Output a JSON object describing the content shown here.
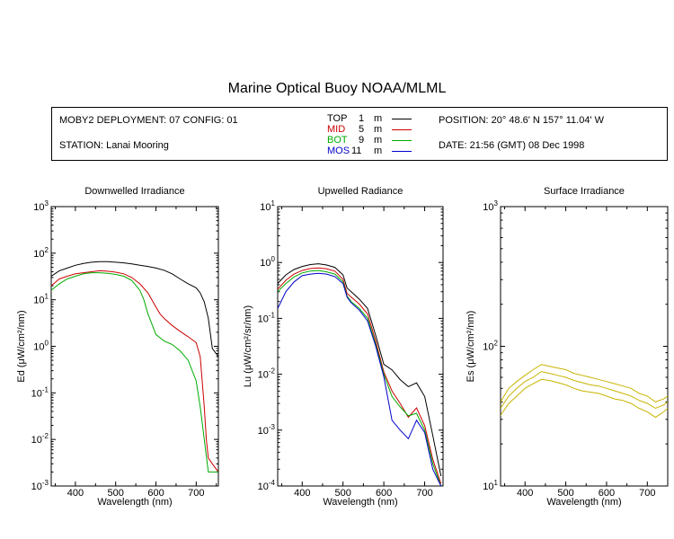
{
  "title": "Marine Optical Buoy NOAA/MLML",
  "header": {
    "deployment": "MOBY2 DEPLOYMENT: 07 CONFIG: 01",
    "station": "STATION: Lanai Mooring",
    "position": "POSITION: 20° 48.6' N   157° 11.04' W",
    "date": "DATE: 21:56 (GMT) 08 Dec 1998"
  },
  "depth_legend": [
    {
      "name": "TOP",
      "depth": "1",
      "unit": "m",
      "color": "#000000"
    },
    {
      "name": "MID",
      "depth": "5",
      "unit": "m",
      "color": "#cc0000"
    },
    {
      "name": "BOT",
      "depth": "9",
      "unit": "m",
      "color": "#00aa00"
    },
    {
      "name": "MOS",
      "depth": "11",
      "unit": "m",
      "color": "#0000cc"
    }
  ],
  "chart_data": [
    {
      "type": "line",
      "title": "Downwelled Irradiance",
      "xlabel": "Wavelength (nm)",
      "ylabel": "Ed  (μW/cm²/nm)",
      "xlim": [
        340,
        755
      ],
      "ylim": [
        0.001,
        1000
      ],
      "log_y": true,
      "x_ticks": [
        400,
        500,
        600,
        700
      ],
      "y_tick_labels": [
        "10-3",
        "10-2",
        "10-1",
        "100",
        "101",
        "102",
        "103"
      ],
      "series": [
        {
          "name": "TOP",
          "color": "#000000",
          "x": [
            340,
            360,
            380,
            400,
            420,
            440,
            460,
            480,
            500,
            520,
            540,
            560,
            580,
            600,
            620,
            640,
            660,
            680,
            700,
            710,
            720,
            730,
            740,
            755
          ],
          "y": [
            32,
            42,
            48,
            55,
            60,
            64,
            66,
            66,
            64,
            62,
            59,
            55,
            52,
            48,
            43,
            36,
            28,
            22,
            18,
            14,
            9,
            4,
            0.9,
            0.6
          ]
        },
        {
          "name": "MID",
          "color": "#cc0000",
          "x": [
            340,
            360,
            380,
            400,
            420,
            440,
            460,
            480,
            500,
            520,
            540,
            560,
            580,
            590,
            600,
            610,
            620,
            640,
            660,
            680,
            700,
            710,
            720,
            725,
            730,
            740,
            755
          ],
          "y": [
            20,
            28,
            32,
            36,
            38,
            40,
            42,
            41,
            39,
            36,
            30,
            22,
            14,
            10,
            7,
            5,
            4,
            2.8,
            2.1,
            1.6,
            1.2,
            0.6,
            0.05,
            0.01,
            0.004,
            0.003,
            0.002
          ]
        },
        {
          "name": "BOT",
          "color": "#00aa00",
          "x": [
            340,
            360,
            380,
            400,
            420,
            440,
            460,
            480,
            500,
            520,
            540,
            560,
            570,
            580,
            590,
            600,
            620,
            640,
            660,
            680,
            700,
            710,
            720,
            730,
            740,
            755
          ],
          "y": [
            16,
            22,
            28,
            32,
            36,
            38,
            38,
            37,
            35,
            32,
            26,
            16,
            10,
            5,
            3,
            1.8,
            1.3,
            1.1,
            0.8,
            0.5,
            0.18,
            0.05,
            0.01,
            0.002,
            0.002,
            0.002
          ]
        }
      ]
    },
    {
      "type": "line",
      "title": "Upwelled Radiance",
      "xlabel": "Wavelength (nm)",
      "ylabel": "Lu  (μW/cm²/sr/nm)",
      "xlim": [
        340,
        745
      ],
      "ylim": [
        0.0001,
        10
      ],
      "log_y": true,
      "x_ticks": [
        400,
        500,
        600,
        700
      ],
      "y_tick_labels": [
        "10-4",
        "10-3",
        "10-2",
        "10-1",
        "100",
        "101"
      ],
      "series": [
        {
          "name": "TOP",
          "color": "#000000",
          "x": [
            340,
            360,
            380,
            400,
            420,
            440,
            460,
            480,
            500,
            510,
            520,
            540,
            560,
            580,
            600,
            620,
            640,
            660,
            680,
            700,
            720,
            740
          ],
          "y": [
            0.42,
            0.6,
            0.75,
            0.85,
            0.92,
            0.95,
            0.9,
            0.82,
            0.6,
            0.35,
            0.3,
            0.22,
            0.15,
            0.05,
            0.015,
            0.012,
            0.008,
            0.006,
            0.007,
            0.004,
            0.0008,
            0.00015
          ]
        },
        {
          "name": "MID",
          "color": "#cc0000",
          "x": [
            340,
            360,
            380,
            400,
            420,
            440,
            460,
            480,
            500,
            510,
            520,
            540,
            560,
            580,
            600,
            620,
            640,
            660,
            680,
            700,
            720,
            740
          ],
          "y": [
            0.33,
            0.48,
            0.62,
            0.72,
            0.78,
            0.8,
            0.77,
            0.7,
            0.5,
            0.28,
            0.24,
            0.18,
            0.12,
            0.04,
            0.011,
            0.005,
            0.003,
            0.0017,
            0.0025,
            0.0012,
            0.0003,
            0.00011
          ]
        },
        {
          "name": "BOT",
          "color": "#00aa00",
          "x": [
            340,
            360,
            380,
            400,
            420,
            440,
            460,
            480,
            500,
            510,
            520,
            540,
            560,
            580,
            600,
            620,
            640,
            660,
            680,
            700,
            720,
            740
          ],
          "y": [
            0.3,
            0.42,
            0.55,
            0.65,
            0.7,
            0.72,
            0.68,
            0.62,
            0.45,
            0.25,
            0.2,
            0.15,
            0.1,
            0.035,
            0.01,
            0.004,
            0.0026,
            0.0018,
            0.002,
            0.001,
            0.00025,
            0.0001
          ]
        },
        {
          "name": "MOS",
          "color": "#0000cc",
          "x": [
            340,
            360,
            380,
            400,
            420,
            440,
            460,
            480,
            500,
            510,
            520,
            540,
            560,
            580,
            600,
            620,
            640,
            660,
            680,
            700,
            720,
            740
          ],
          "y": [
            0.15,
            0.3,
            0.45,
            0.58,
            0.62,
            0.64,
            0.62,
            0.56,
            0.42,
            0.24,
            0.19,
            0.14,
            0.09,
            0.032,
            0.009,
            0.0015,
            0.001,
            0.0007,
            0.0015,
            0.0009,
            0.0002,
            0.0001
          ]
        }
      ]
    },
    {
      "type": "line",
      "title": "Surface Irradiance",
      "xlabel": "Wavelength (nm)",
      "ylabel": "Es  (μW/cm²/nm)",
      "xlim": [
        340,
        750
      ],
      "ylim": [
        10,
        1000
      ],
      "log_y": true,
      "x_ticks": [
        400,
        500,
        600,
        700
      ],
      "y_tick_labels": [
        "101",
        "102",
        "103"
      ],
      "series": [
        {
          "name": "",
          "color": "#c8b400",
          "x": [
            340,
            360,
            380,
            400,
            420,
            440,
            460,
            480,
            500,
            520,
            540,
            560,
            580,
            600,
            620,
            640,
            660,
            680,
            700,
            720,
            740,
            750
          ],
          "y": [
            40,
            50,
            56,
            62,
            68,
            74,
            72,
            70,
            68,
            64,
            62,
            60,
            58,
            56,
            54,
            52,
            50,
            46,
            44,
            40,
            42,
            44
          ]
        },
        {
          "name": "",
          "color": "#c8b400",
          "x": [
            340,
            360,
            380,
            400,
            420,
            440,
            460,
            480,
            500,
            520,
            540,
            560,
            580,
            600,
            620,
            640,
            660,
            680,
            700,
            720,
            740,
            750
          ],
          "y": [
            36,
            44,
            50,
            56,
            60,
            66,
            64,
            62,
            60,
            57,
            55,
            53,
            52,
            50,
            48,
            46,
            44,
            41,
            39,
            36,
            38,
            40
          ]
        },
        {
          "name": "",
          "color": "#c8b400",
          "x": [
            340,
            360,
            380,
            400,
            420,
            440,
            460,
            480,
            500,
            520,
            540,
            560,
            580,
            600,
            620,
            640,
            660,
            680,
            700,
            720,
            740,
            750
          ],
          "y": [
            32,
            39,
            44,
            50,
            54,
            58,
            57,
            55,
            53,
            50,
            48,
            47,
            46,
            44,
            42,
            41,
            39,
            36,
            34,
            31,
            34,
            36
          ]
        }
      ]
    }
  ]
}
